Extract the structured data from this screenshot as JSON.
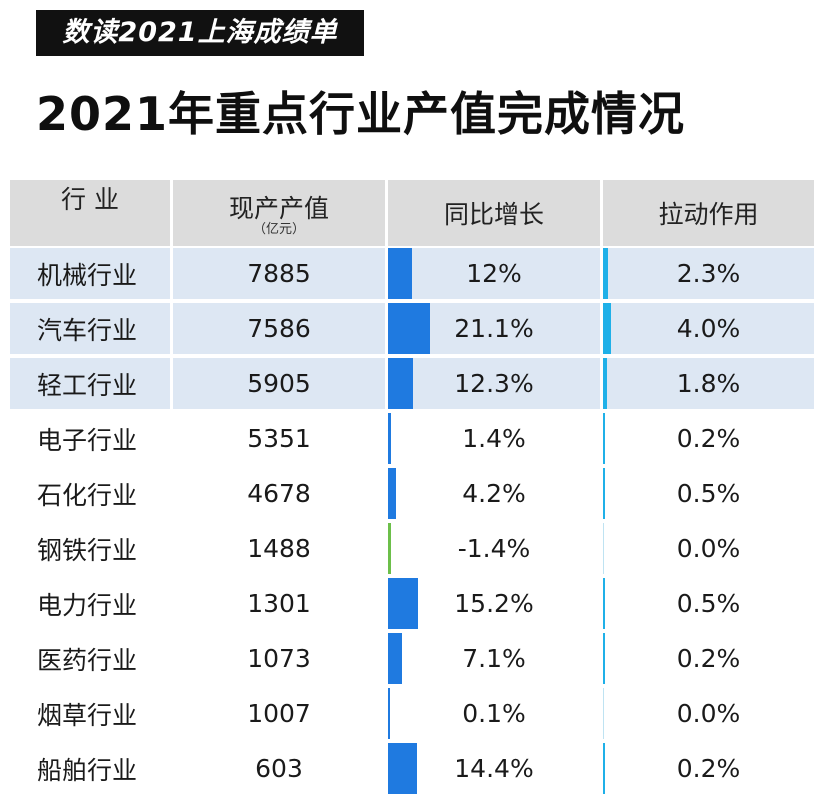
{
  "tag": "数读2021上海成绩单",
  "title": "2021年重点行业产值完成情况",
  "chart_data": {
    "type": "table",
    "columns": [
      {
        "label": "行 业",
        "sub": ""
      },
      {
        "label": "现产产值",
        "sub": "（亿元）"
      },
      {
        "label": "同比增长",
        "sub": ""
      },
      {
        "label": "拉动作用",
        "sub": ""
      }
    ],
    "rows": [
      {
        "industry": "机械行业",
        "output": "7885",
        "growth": "12%",
        "growth_value": 12,
        "pull": "2.3%",
        "pull_value": 2.3,
        "highlight": true
      },
      {
        "industry": "汽车行业",
        "output": "7586",
        "growth": "21.1%",
        "growth_value": 21.1,
        "pull": "4.0%",
        "pull_value": 4.0,
        "highlight": true
      },
      {
        "industry": "轻工行业",
        "output": "5905",
        "growth": "12.3%",
        "growth_value": 12.3,
        "pull": "1.8%",
        "pull_value": 1.8,
        "highlight": true
      },
      {
        "industry": "电子行业",
        "output": "5351",
        "growth": "1.4%",
        "growth_value": 1.4,
        "pull": "0.2%",
        "pull_value": 0.2,
        "highlight": false
      },
      {
        "industry": "石化行业",
        "output": "4678",
        "growth": "4.2%",
        "growth_value": 4.2,
        "pull": "0.5%",
        "pull_value": 0.5,
        "highlight": false
      },
      {
        "industry": "钢铁行业",
        "output": "1488",
        "growth": "-1.4%",
        "growth_value": -1.4,
        "pull": "0.0%",
        "pull_value": 0.0,
        "highlight": false
      },
      {
        "industry": "电力行业",
        "output": "1301",
        "growth": "15.2%",
        "growth_value": 15.2,
        "pull": "0.5%",
        "pull_value": 0.5,
        "highlight": false
      },
      {
        "industry": "医药行业",
        "output": "1073",
        "growth": "7.1%",
        "growth_value": 7.1,
        "pull": "0.2%",
        "pull_value": 0.2,
        "highlight": false
      },
      {
        "industry": "烟草行业",
        "output": "1007",
        "growth": "0.1%",
        "growth_value": 0.1,
        "pull": "0.0%",
        "pull_value": 0.0,
        "highlight": false
      },
      {
        "industry": "船舶行业",
        "output": "603",
        "growth": "14.4%",
        "growth_value": 14.4,
        "pull": "0.2%",
        "pull_value": 0.2,
        "highlight": false
      }
    ]
  }
}
